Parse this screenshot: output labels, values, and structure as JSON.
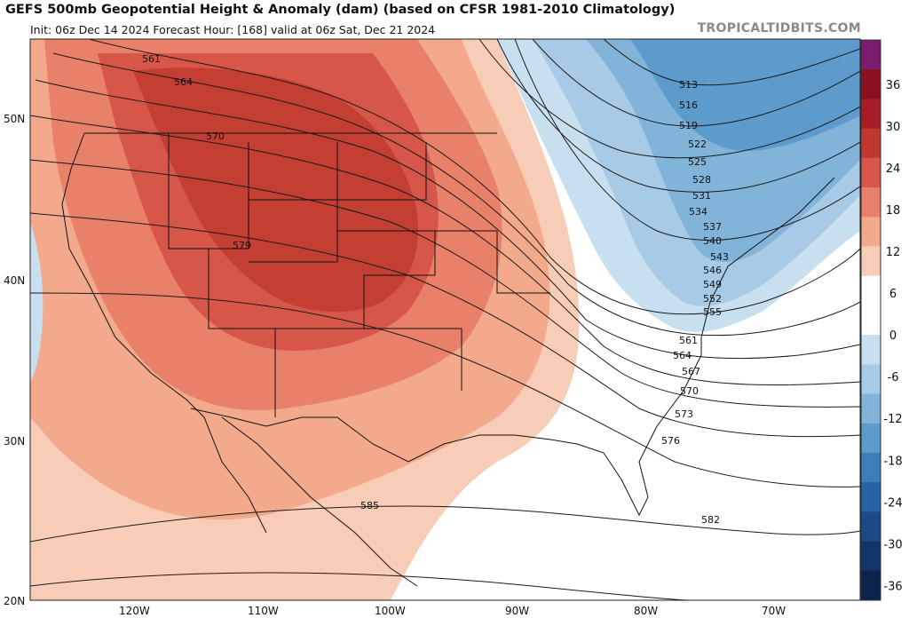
{
  "title": "GEFS 500mb Geopotential Height & Anomaly (dam) (based on CFSR 1981-2010 Climatology)",
  "subtitle": "Init: 06z Dec 14 2024   Forecast Hour: [168]   valid at 06z Sat, Dec 21 2024",
  "watermark": "TROPICALTIDBITS.COM",
  "lat_labels": [
    "50N",
    "40N",
    "30N",
    "20N"
  ],
  "lon_labels": [
    "120W",
    "110W",
    "100W",
    "90W",
    "80W",
    "70W"
  ],
  "contour_labels": [
    "561",
    "564",
    "570",
    "579",
    "585",
    "513",
    "516",
    "519",
    "522",
    "525",
    "528",
    "531",
    "534",
    "537",
    "540",
    "543",
    "546",
    "549",
    "552",
    "555",
    "561",
    "564",
    "567",
    "570",
    "573",
    "576",
    "582"
  ],
  "colorbar": {
    "labels": [
      "36",
      "30",
      "24",
      "18",
      "12",
      "6",
      "0",
      "-6",
      "-12",
      "-18",
      "-24",
      "-30",
      "-36"
    ],
    "colors": [
      "#7b1d6e",
      "#8a1020",
      "#a51d25",
      "#c0392f",
      "#d6564a",
      "#e8806a",
      "#f3a98c",
      "#f8cdb7",
      "#ffffff",
      "#ffffff",
      "#c8dff0",
      "#a7cbe6",
      "#82b4da",
      "#5c9bcb",
      "#3b7fba",
      "#2563a3",
      "#1a4a87",
      "#12356a",
      "#0c234d"
    ]
  }
}
